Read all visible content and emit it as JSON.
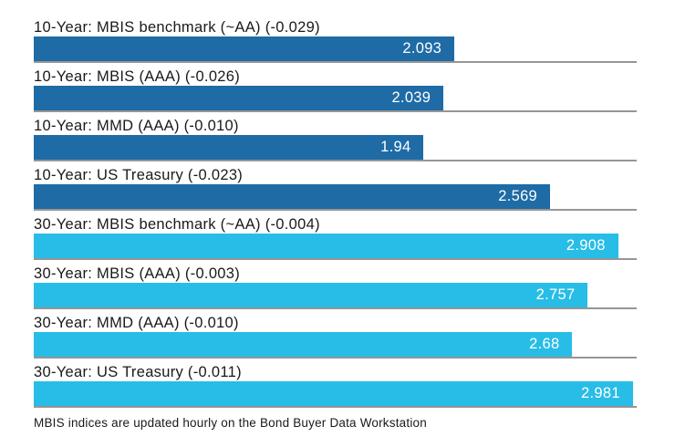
{
  "chart_data": {
    "type": "bar",
    "orientation": "horizontal",
    "title": "",
    "xlabel": "",
    "ylabel": "",
    "xlim": [
      0,
      3.0
    ],
    "grid": false,
    "legend": "none",
    "groups": [
      {
        "name": "10-Year",
        "color": "#1e6ba6"
      },
      {
        "name": "30-Year",
        "color": "#27bde6"
      }
    ],
    "rows": [
      {
        "label": "10-Year: MBIS benchmark (~AA) (-0.029)",
        "value": 2.093,
        "value_display": "2.093",
        "change": -0.029,
        "group": "10-Year"
      },
      {
        "label": "10-Year: MBIS (AAA) (-0.026)",
        "value": 2.039,
        "value_display": "2.039",
        "change": -0.026,
        "group": "10-Year"
      },
      {
        "label": "10-Year: MMD (AAA) (-0.010)",
        "value": 1.94,
        "value_display": "1.94",
        "change": -0.01,
        "group": "10-Year"
      },
      {
        "label": "10-Year: US Treasury (-0.023)",
        "value": 2.569,
        "value_display": "2.569",
        "change": -0.023,
        "group": "10-Year"
      },
      {
        "label": "30-Year: MBIS benchmark (~AA) (-0.004)",
        "value": 2.908,
        "value_display": "2.908",
        "change": -0.004,
        "group": "30-Year"
      },
      {
        "label": "30-Year: MBIS (AAA) (-0.003)",
        "value": 2.757,
        "value_display": "2.757",
        "change": -0.003,
        "group": "30-Year"
      },
      {
        "label": "30-Year: MMD (AAA) (-0.010)",
        "value": 2.68,
        "value_display": "2.68",
        "change": -0.01,
        "group": "30-Year"
      },
      {
        "label": "30-Year: US Treasury (-0.011)",
        "value": 2.981,
        "value_display": "2.981",
        "change": -0.011,
        "group": "30-Year"
      }
    ],
    "footnote": "MBIS indices are updated hourly on the Bond Buyer Data Workstation"
  },
  "colors": {
    "bar_10_year": "#1e6ba6",
    "bar_30_year": "#27bde6",
    "baseline": "#969696",
    "label_text": "#1a1a1a",
    "value_text": "#ffffff",
    "background": "#ffffff"
  }
}
